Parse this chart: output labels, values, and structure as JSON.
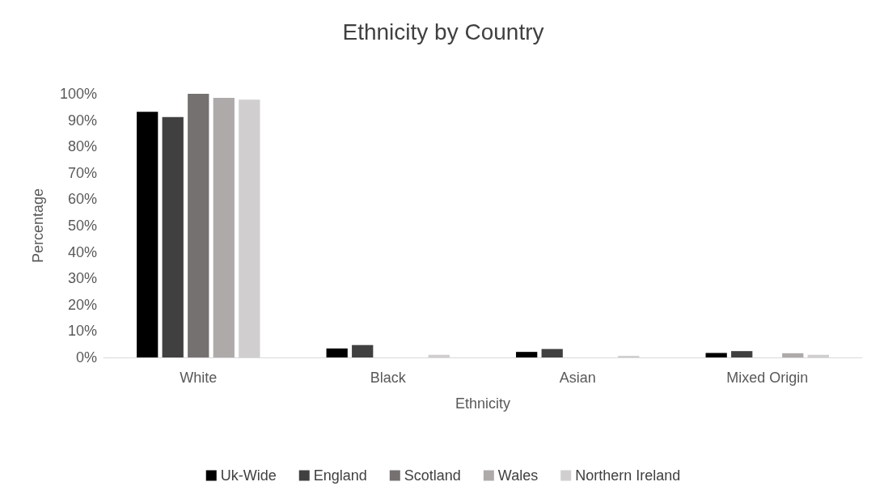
{
  "chart_data": {
    "type": "bar",
    "title": "Ethnicity by Country",
    "xlabel": "Ethnicity",
    "ylabel": "Percentage",
    "categories": [
      "White",
      "Black",
      "Asian",
      "Mixed Origin"
    ],
    "series": [
      {
        "name": "Uk-Wide",
        "color": "#000000",
        "values": [
          93.2,
          3.4,
          2.1,
          1.7
        ]
      },
      {
        "name": "England",
        "color": "#404040",
        "values": [
          91.2,
          4.7,
          3.2,
          2.4
        ]
      },
      {
        "name": "Scotland",
        "color": "#767171",
        "values": [
          100,
          0,
          0,
          0
        ]
      },
      {
        "name": "Wales",
        "color": "#aeaaaa",
        "values": [
          98.5,
          0,
          0,
          1.6
        ]
      },
      {
        "name": "Northern Ireland",
        "color": "#d0cece",
        "values": [
          97.8,
          1.0,
          0.6,
          1.0
        ]
      }
    ],
    "ylim": [
      0,
      100
    ],
    "yticks": [
      {
        "value": 0,
        "label": "0%"
      },
      {
        "value": 10,
        "label": "10%"
      },
      {
        "value": 20,
        "label": "20%"
      },
      {
        "value": 30,
        "label": "30%"
      },
      {
        "value": 40,
        "label": "40%"
      },
      {
        "value": 50,
        "label": "50%"
      },
      {
        "value": 60,
        "label": "60%"
      },
      {
        "value": 70,
        "label": "70%"
      },
      {
        "value": 80,
        "label": "80%"
      },
      {
        "value": 90,
        "label": "90%"
      },
      {
        "value": 100,
        "label": "100%"
      }
    ],
    "grid": false,
    "legend": "bottom"
  }
}
